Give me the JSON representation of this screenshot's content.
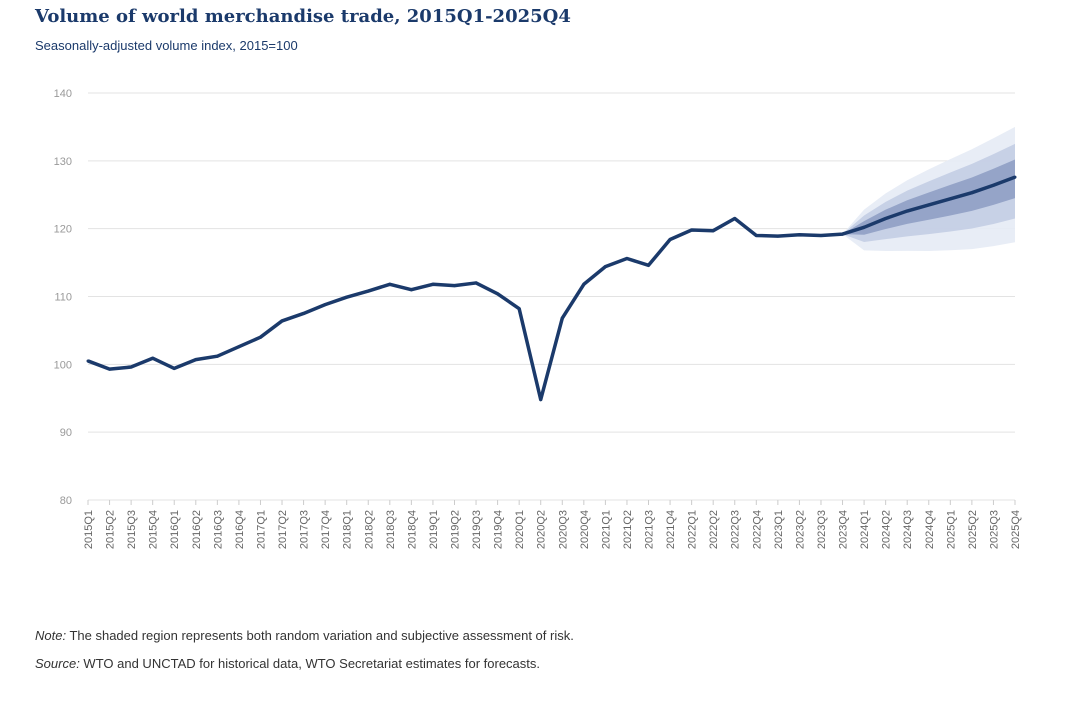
{
  "chart_data": {
    "type": "line",
    "title": "Volume of world merchandise trade, 2015Q1-2025Q4",
    "subtitle": "Seasonally-adjusted volume index, 2015=100",
    "xlabel": "",
    "ylabel": "",
    "ylim": [
      80,
      140
    ],
    "yticks": [
      80,
      90,
      100,
      110,
      120,
      130,
      140
    ],
    "grid": true,
    "categories": [
      "2015Q1",
      "2015Q2",
      "2015Q3",
      "2015Q4",
      "2016Q1",
      "2016Q2",
      "2016Q3",
      "2016Q4",
      "2017Q1",
      "2017Q2",
      "2017Q3",
      "2017Q4",
      "2018Q1",
      "2018Q2",
      "2018Q3",
      "2018Q4",
      "2019Q1",
      "2019Q2",
      "2019Q3",
      "2019Q4",
      "2020Q1",
      "2020Q2",
      "2020Q3",
      "2020Q4",
      "2021Q1",
      "2021Q2",
      "2021Q3",
      "2021Q4",
      "2022Q1",
      "2022Q2",
      "2022Q3",
      "2022Q4",
      "2023Q1",
      "2023Q2",
      "2023Q3",
      "2023Q4",
      "2024Q1",
      "2024Q2",
      "2024Q3",
      "2024Q4",
      "2025Q1",
      "2025Q2",
      "2025Q3",
      "2025Q4"
    ],
    "values": [
      100.5,
      99.3,
      99.6,
      100.9,
      99.4,
      100.7,
      101.2,
      102.6,
      104.0,
      106.4,
      107.5,
      108.8,
      109.9,
      110.8,
      111.8,
      111.0,
      111.8,
      111.6,
      112.0,
      110.4,
      108.2,
      94.8,
      106.8,
      111.8,
      114.4,
      115.6,
      114.6,
      118.4,
      119.8,
      119.7,
      121.5,
      119.0,
      118.9,
      119.1,
      119.0,
      119.2,
      120.2,
      121.5,
      122.6,
      123.5,
      124.4,
      125.3,
      126.4,
      127.6
    ],
    "forecast_start": "2023Q4",
    "bands": [
      {
        "level": "outer",
        "lower_end": 118.0,
        "upper_end": 135.0
      },
      {
        "level": "middle",
        "lower_end": 121.5,
        "upper_end": 132.5
      },
      {
        "level": "inner",
        "lower_end": 124.5,
        "upper_end": 130.2
      }
    ],
    "colors": {
      "line": "#1b3a6b",
      "outer": "#e6ebf5",
      "middle": "#c3cde4",
      "inner": "#8f9fc4",
      "grid": "#e3e3e3",
      "tick": "#999999"
    }
  },
  "notes": {
    "note_label": "Note:",
    "note_text": " The shaded region represents both random variation and subjective assessment of risk.",
    "source_label": "Source:",
    "source_text": " WTO and UNCTAD for historical data, WTO Secretariat estimates for forecasts."
  }
}
